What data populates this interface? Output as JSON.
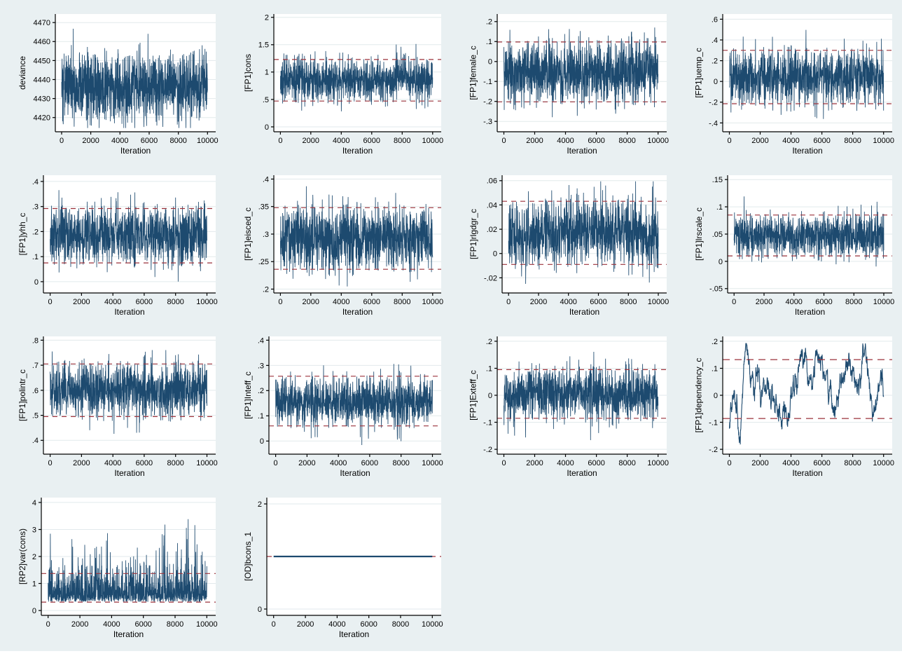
{
  "window": {
    "kind": "stata-graph-window",
    "background_color": "#e9f0f2",
    "plot_background_color": "#ffffff",
    "grid_color": "#e2eaec",
    "axis_color": "#000000",
    "trace_color": "#1d4a6f",
    "ref_line_color": "#9b323b"
  },
  "chart_data": {
    "type": "line",
    "subtype": "mcmc-trace-plot-matrix",
    "title": "",
    "xlabel": "Iteration",
    "x_ticks": [
      0,
      2000,
      4000,
      6000,
      8000,
      10000
    ],
    "x_tick_labels": [
      "0",
      "2000",
      "4000",
      "6000",
      "8000",
      "10000"
    ],
    "xlim": [
      -430,
      10560
    ],
    "iterations": 10000,
    "grid": "horizontal-only",
    "legend": "none",
    "layout_rows": [
      4,
      4,
      4,
      2
    ],
    "plots": [
      {
        "ylabel": "deviance",
        "ylim": [
          4412.5,
          4474.5
        ],
        "yticks": [
          4420,
          4430,
          4440,
          4450,
          4460,
          4470
        ],
        "ytick_labels": [
          "4420",
          "4430",
          "4440",
          "4450",
          "4460",
          "4470"
        ],
        "ref_lines": [],
        "trace": {
          "kind": "noise",
          "mean": 4437,
          "sd": 9.2,
          "min": 4414.5,
          "max": 4473
        }
      },
      {
        "ylabel": "[FP1]cons",
        "ylim": [
          -0.09,
          2.06
        ],
        "yticks": [
          0,
          0.5,
          1,
          1.5,
          2
        ],
        "ytick_labels": [
          "0",
          ".5",
          "1",
          "1.5",
          "2"
        ],
        "ref_lines": [
          1.23,
          0.47
        ],
        "trace": {
          "kind": "noise",
          "mean": 0.855,
          "sd": 0.2,
          "min": 0.02,
          "max": 1.65
        }
      },
      {
        "ylabel": "[FP1]female_c",
        "ylim": [
          -0.352,
          0.238
        ],
        "yticks": [
          -0.3,
          -0.2,
          -0.1,
          0,
          0.1,
          0.2
        ],
        "ytick_labels": [
          "-.3",
          "-.2",
          "-.1",
          "0",
          ".1",
          ".2"
        ],
        "ref_lines": [
          0.098,
          -0.202
        ],
        "trace": {
          "kind": "noise",
          "mean": -0.052,
          "sd": 0.078,
          "min": -0.325,
          "max": 0.213
        }
      },
      {
        "ylabel": "[FP1]uemp_c",
        "ylim": [
          -0.485,
          0.65
        ],
        "yticks": [
          -0.4,
          -0.2,
          0,
          0.2,
          0.4,
          0.6
        ],
        "ytick_labels": [
          "-.4",
          "-.2",
          "0",
          ".2",
          ".4",
          ".6"
        ],
        "ref_lines": [
          0.3,
          -0.215
        ],
        "trace": {
          "kind": "noise",
          "mean": 0.042,
          "sd": 0.134,
          "min": -0.435,
          "max": 0.515
        }
      },
      {
        "ylabel": "[FP1]yhh_c",
        "ylim": [
          -0.045,
          0.425
        ],
        "yticks": [
          0,
          0.1,
          0.2,
          0.3,
          0.4
        ],
        "ytick_labels": [
          "0",
          ".1",
          ".2",
          ".3",
          ".4"
        ],
        "ref_lines": [
          0.292,
          0.075
        ],
        "trace": {
          "kind": "noise",
          "mean": 0.183,
          "sd": 0.056,
          "min": -0.025,
          "max": 0.39
        }
      },
      {
        "ylabel": "[FP1]eisced_c",
        "ylim": [
          0.193,
          0.407
        ],
        "yticks": [
          0.2,
          0.25,
          0.3,
          0.35,
          0.4
        ],
        "ytick_labels": [
          ".2",
          ".25",
          ".3",
          ".35",
          ".4"
        ],
        "ref_lines": [
          0.348,
          0.236
        ],
        "trace": {
          "kind": "noise",
          "mean": 0.292,
          "sd": 0.029,
          "min": 0.201,
          "max": 0.396
        }
      },
      {
        "ylabel": "[FP1]rlgdgr_c",
        "ylim": [
          -0.0325,
          0.0645
        ],
        "yticks": [
          -0.02,
          0,
          0.02,
          0.04,
          0.06
        ],
        "ytick_labels": [
          "-.02",
          "0",
          ".02",
          ".04",
          ".06"
        ],
        "ref_lines": [
          0.043,
          -0.009
        ],
        "trace": {
          "kind": "noise",
          "mean": 0.0172,
          "sd": 0.0134,
          "min": -0.0275,
          "max": 0.0595
        }
      },
      {
        "ylabel": "[FP1]lrscale_c",
        "ylim": [
          -0.058,
          0.158
        ],
        "yticks": [
          -0.05,
          0,
          0.05,
          0.1,
          0.15
        ],
        "ytick_labels": [
          "-.05",
          "0",
          ".05",
          ".1",
          ".15"
        ],
        "ref_lines": [
          0.085,
          0.01
        ],
        "trace": {
          "kind": "noise",
          "mean": 0.0475,
          "sd": 0.0195,
          "min": -0.0235,
          "max": 0.119
        }
      },
      {
        "ylabel": "[FP1]polintr_c",
        "ylim": [
          0.345,
          0.815
        ],
        "yticks": [
          0.4,
          0.5,
          0.6,
          0.7,
          0.8
        ],
        "ytick_labels": [
          ".4",
          ".5",
          ".6",
          ".7",
          ".8"
        ],
        "ref_lines": [
          0.705,
          0.495
        ],
        "trace": {
          "kind": "noise",
          "mean": 0.6,
          "sd": 0.054,
          "min": 0.357,
          "max": 0.788
        }
      },
      {
        "ylabel": "[FP1]Inteff_c",
        "ylim": [
          -0.052,
          0.415
        ],
        "yticks": [
          0,
          0.1,
          0.2,
          0.3,
          0.4
        ],
        "ytick_labels": [
          "0",
          ".1",
          ".2",
          ".3",
          ".4"
        ],
        "ref_lines": [
          0.257,
          0.06
        ],
        "trace": {
          "kind": "noise",
          "mean": 0.158,
          "sd": 0.051,
          "min": -0.03,
          "max": 0.353
        }
      },
      {
        "ylabel": "[FP1]Exteff_c",
        "ylim": [
          -0.218,
          0.218
        ],
        "yticks": [
          -0.2,
          -0.1,
          0,
          0.1,
          0.2
        ],
        "ytick_labels": [
          "-.2",
          "-.1",
          "0",
          ".1",
          ".2"
        ],
        "ref_lines": [
          0.095,
          -0.085
        ],
        "trace": {
          "kind": "noise",
          "mean": 0.005,
          "sd": 0.047,
          "min": -0.181,
          "max": 0.161
        }
      },
      {
        "ylabel": "[FP1]dependency_c",
        "ylim": [
          -0.218,
          0.218
        ],
        "yticks": [
          -0.2,
          -0.1,
          0,
          0.1,
          0.2
        ],
        "ytick_labels": [
          "-.2",
          "-.1",
          "0",
          ".1",
          ".2"
        ],
        "ref_lines": [
          0.132,
          -0.086
        ],
        "trace": {
          "kind": "walk",
          "noise_sd": 0.016,
          "ar": 0.8,
          "min": -0.182,
          "max": 0.192,
          "keyframes": [
            [
              0,
              -0.12
            ],
            [
              250,
              0.04
            ],
            [
              500,
              -0.06
            ],
            [
              700,
              -0.17
            ],
            [
              900,
              0.08
            ],
            [
              1100,
              0.18
            ],
            [
              1300,
              0.1
            ],
            [
              1600,
              0.04
            ],
            [
              1900,
              0.09
            ],
            [
              2100,
              -0.02
            ],
            [
              2400,
              0.02
            ],
            [
              2700,
              -0.01
            ],
            [
              3000,
              -0.04
            ],
            [
              3300,
              -0.07
            ],
            [
              3600,
              -0.05
            ],
            [
              3900,
              -0.08
            ],
            [
              4100,
              0
            ],
            [
              4400,
              0.05
            ],
            [
              4700,
              0.12
            ],
            [
              4900,
              0.16
            ],
            [
              5100,
              0.05
            ],
            [
              5400,
              0.08
            ],
            [
              5700,
              0.14
            ],
            [
              6000,
              0.15
            ],
            [
              6200,
              0.05
            ],
            [
              6500,
              0.02
            ],
            [
              6800,
              -0.1
            ],
            [
              7000,
              0
            ],
            [
              7300,
              0.06
            ],
            [
              7600,
              0.09
            ],
            [
              7900,
              0.12
            ],
            [
              8200,
              0.05
            ],
            [
              8500,
              0.08
            ],
            [
              8800,
              0.19
            ],
            [
              9000,
              0.1
            ],
            [
              9300,
              -0.07
            ],
            [
              9600,
              0
            ],
            [
              9800,
              0.05
            ],
            [
              10000,
              0.02
            ]
          ]
        }
      },
      {
        "ylabel": "[RP2]var(cons)",
        "ylim": [
          -0.18,
          4.18
        ],
        "yticks": [
          0,
          1,
          2,
          3,
          4
        ],
        "ytick_labels": [
          "0",
          "1",
          "2",
          "3",
          "4"
        ],
        "ref_lines": [
          1.37,
          0.31
        ],
        "trace": {
          "kind": "exp",
          "base": 0.32,
          "scale": 0.45,
          "min": 0.24,
          "max": 3.38
        }
      },
      {
        "ylabel": "[OD]bcons_1",
        "ylim": [
          -0.12,
          2.12
        ],
        "yticks": [
          0,
          2
        ],
        "ytick_labels": [
          "0",
          "2"
        ],
        "ref_lines": [
          1
        ],
        "trace": {
          "kind": "flat",
          "value": 1
        }
      }
    ]
  }
}
